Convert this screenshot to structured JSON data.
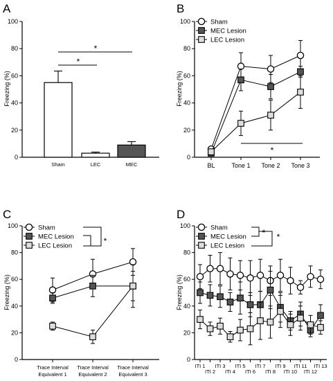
{
  "chart_data": [
    {
      "panel": "A",
      "type": "bar",
      "ylabel": "Freezing (%)",
      "ylim": [
        0,
        100
      ],
      "yticks": [
        0,
        20,
        40,
        60,
        80,
        100
      ],
      "categories": [
        "Sham",
        "LEC",
        "MEC"
      ],
      "values": [
        55,
        3,
        9
      ],
      "errors": [
        8.5,
        0.8,
        2.5
      ],
      "colors": [
        "#ffffff",
        "#ffffff",
        "#555555"
      ],
      "annotations": [
        {
          "label": "*",
          "between": [
            "Sham",
            "LEC"
          ]
        },
        {
          "label": "*",
          "between": [
            "Sham",
            "MEC"
          ]
        }
      ]
    },
    {
      "panel": "B",
      "type": "line",
      "ylabel": "Freezing (%)",
      "ylim": [
        0,
        100
      ],
      "yticks": [
        0,
        20,
        40,
        60,
        80,
        100
      ],
      "categories": [
        "BL",
        "Tone 1",
        "Tone 2",
        "Tone 3"
      ],
      "legend_position": "top-left",
      "series": [
        {
          "name": "Sham",
          "marker": "circle",
          "fill": "#ffffff",
          "values": [
            6,
            67,
            65,
            75
          ],
          "errors": [
            1.5,
            10,
            10,
            11
          ]
        },
        {
          "name": "MEC Lesion",
          "marker": "square",
          "fill": "#555555",
          "values": [
            3,
            57,
            52,
            63
          ],
          "errors": [
            1,
            8,
            9,
            4
          ]
        },
        {
          "name": "LEC Lesion",
          "marker": "square",
          "fill": "#dddddd",
          "values": [
            4,
            25,
            31,
            48
          ],
          "errors": [
            1.5,
            9,
            11,
            12
          ]
        }
      ],
      "annotations": [
        {
          "label": "*",
          "from": "Tone 1",
          "to": "Tone 3"
        }
      ]
    },
    {
      "panel": "C",
      "type": "line",
      "ylabel": "Freezing (%)",
      "ylim": [
        0,
        100
      ],
      "yticks": [
        0,
        20,
        40,
        60,
        80,
        100
      ],
      "categories": [
        "Trace Interval Equivalent 1",
        "Trace Interval Equivalent 2",
        "Trace Interval Equivalent 3"
      ],
      "legend_position": "top-left",
      "series": [
        {
          "name": "Sham",
          "marker": "circle",
          "fill": "#ffffff",
          "values": [
            52,
            64,
            73
          ],
          "errors": [
            9,
            11,
            10
          ]
        },
        {
          "name": "MEC Lesion",
          "marker": "square",
          "fill": "#555555",
          "values": [
            46,
            55,
            55
          ],
          "errors": [
            4,
            8,
            11
          ]
        },
        {
          "name": "LEC Lesion",
          "marker": "square",
          "fill": "#dddddd",
          "values": [
            25,
            17,
            55
          ],
          "errors": [
            3,
            5,
            16
          ]
        }
      ],
      "annotations": [
        {
          "label": "*"
        }
      ]
    },
    {
      "panel": "D",
      "type": "line",
      "ylabel": "Freezing (%)",
      "ylim": [
        0,
        100
      ],
      "yticks": [
        0,
        20,
        40,
        60,
        80,
        100
      ],
      "categories": [
        "ITI 1",
        "ITI 2",
        "ITI 3",
        "ITI 4",
        "ITI 5",
        "ITI 6",
        "ITI 7",
        "ITI 8",
        "ITI 9",
        "ITI 10",
        "ITI 11",
        "ITI 12",
        "ITI 13"
      ],
      "legend_position": "top-left",
      "series": [
        {
          "name": "Sham",
          "marker": "circle",
          "fill": "#ffffff",
          "values": [
            62,
            68,
            68,
            64,
            63,
            61,
            63,
            59,
            63,
            59,
            54,
            62,
            60
          ],
          "errors": [
            9,
            10,
            12,
            12,
            11,
            13,
            12,
            11,
            12,
            10,
            5,
            8,
            7
          ]
        },
        {
          "name": "MEC Lesion",
          "marker": "square",
          "fill": "#555555",
          "values": [
            50,
            48,
            47,
            43,
            46,
            41,
            41,
            52,
            39,
            29,
            34,
            22,
            33
          ],
          "errors": [
            8,
            8,
            8,
            7,
            12,
            9,
            10,
            14,
            11,
            7,
            9,
            5,
            8
          ]
        },
        {
          "name": "LEC Lesion",
          "marker": "square",
          "fill": "#dddddd",
          "values": [
            30,
            23,
            25,
            17,
            22,
            23,
            29,
            28,
            36,
            26,
            31,
            26,
            24
          ],
          "errors": [
            7,
            5,
            6,
            4,
            8,
            12,
            14,
            12,
            12,
            8,
            9,
            7,
            5
          ]
        }
      ],
      "annotations": [
        {
          "label": "*"
        },
        {
          "label": "*"
        }
      ]
    }
  ]
}
